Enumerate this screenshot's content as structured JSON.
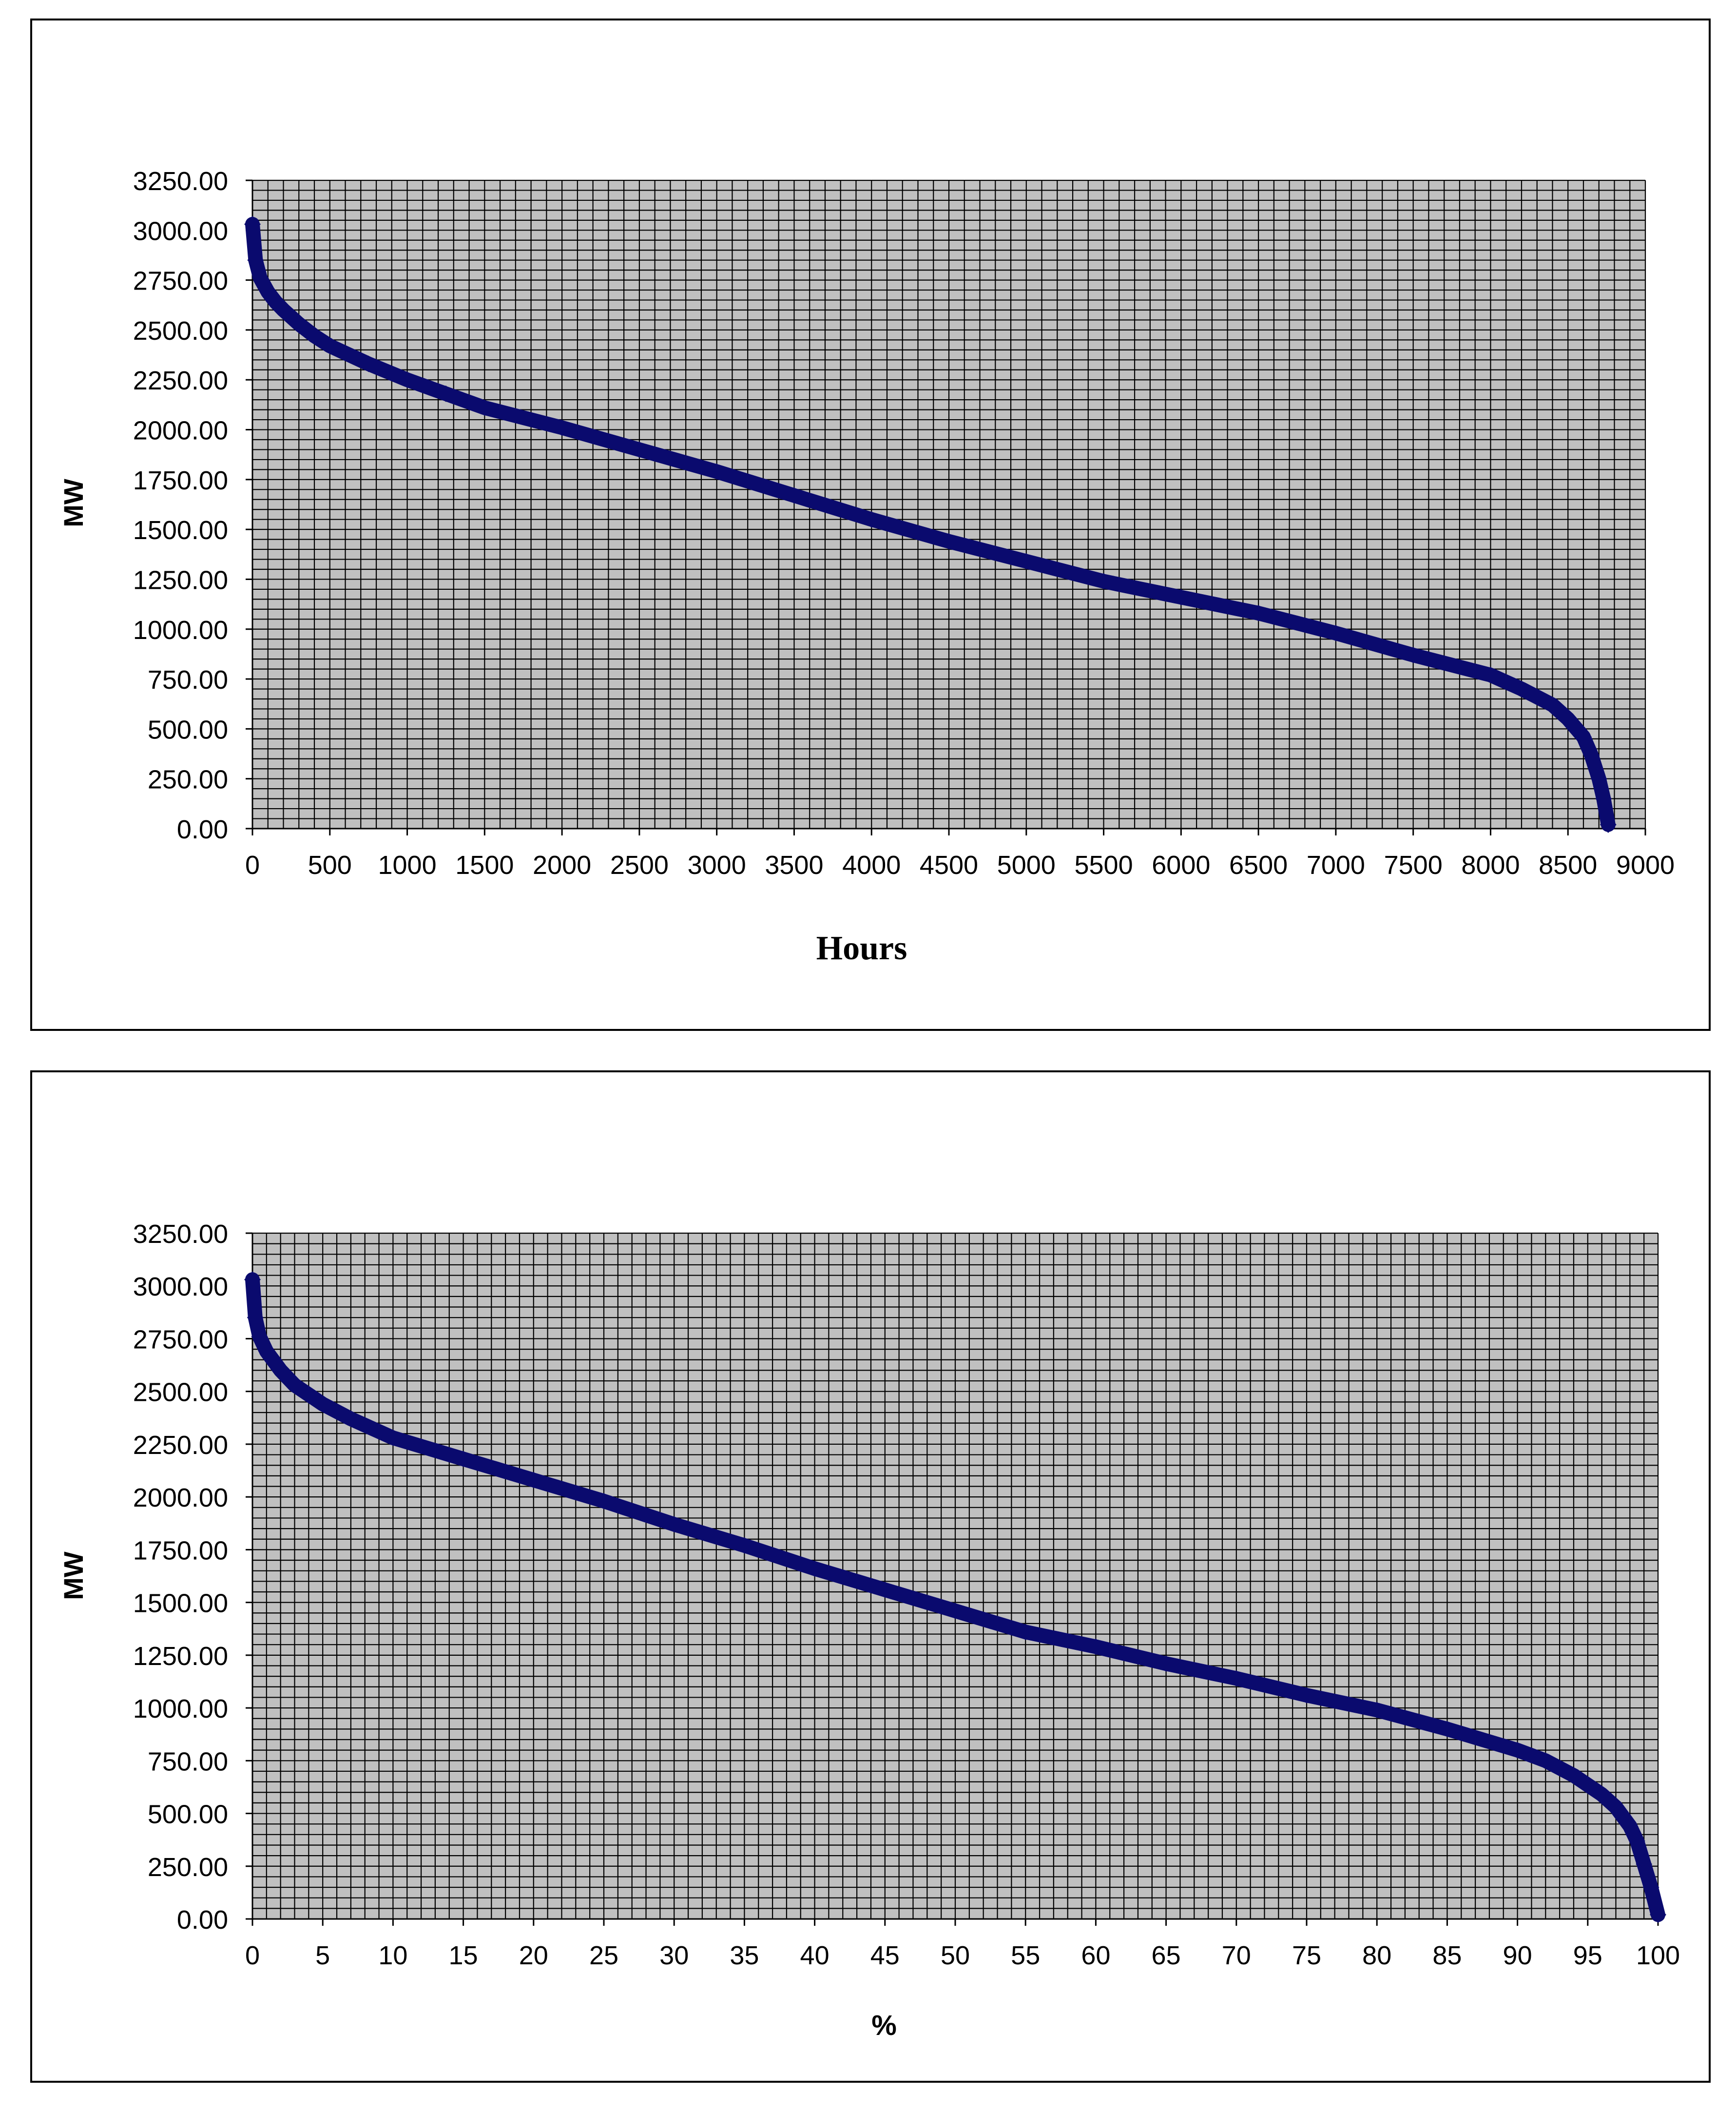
{
  "chart_data": [
    {
      "type": "scatter",
      "title": "",
      "xlabel": "Hours",
      "ylabel": "MW",
      "xlim": [
        0,
        9000
      ],
      "ylim": [
        0,
        3250
      ],
      "x_ticks": [
        0,
        500,
        1000,
        1500,
        2000,
        2500,
        3000,
        3500,
        4000,
        4500,
        5000,
        5500,
        6000,
        6500,
        7000,
        7500,
        8000,
        8500,
        9000
      ],
      "x_tick_labels": [
        "0",
        "500",
        "1000",
        "1500",
        "2000",
        "2500",
        "3000",
        "3500",
        "4000",
        "4500",
        "5000",
        "5500",
        "6000",
        "6500",
        "7000",
        "7500",
        "8000",
        "8500",
        "9000"
      ],
      "y_ticks": [
        0,
        250,
        500,
        750,
        1000,
        1250,
        1500,
        1750,
        2000,
        2250,
        2500,
        2750,
        3000,
        3250
      ],
      "y_tick_labels": [
        "0.00",
        "250.00",
        "500.00",
        "750.00",
        "1000.00",
        "1250.00",
        "1500.00",
        "1750.00",
        "2000.00",
        "2250.00",
        "2500.00",
        "2750.00",
        "3000.00",
        "3250.00"
      ],
      "x_grid": "every 100 units",
      "y_grid": "every 50 units",
      "legend": "none",
      "series": [
        {
          "color": "#0a0a6e",
          "x": [
            0,
            20,
            50,
            100,
            150,
            200,
            300,
            400,
            500,
            750,
            1000,
            1250,
            1500,
            2000,
            2500,
            3000,
            3500,
            4000,
            4500,
            5000,
            5500,
            6000,
            6500,
            7000,
            7500,
            8000,
            8200,
            8400,
            8500,
            8600,
            8650,
            8700,
            8730,
            8760
          ],
          "y": [
            3030,
            2850,
            2760,
            2690,
            2640,
            2600,
            2530,
            2470,
            2420,
            2330,
            2250,
            2180,
            2110,
            2010,
            1900,
            1790,
            1670,
            1550,
            1440,
            1340,
            1240,
            1160,
            1080,
            980,
            870,
            770,
            700,
            620,
            550,
            460,
            370,
            250,
            150,
            20
          ]
        }
      ]
    },
    {
      "type": "scatter",
      "title": "",
      "xlabel": "%",
      "ylabel": "MW",
      "xlim": [
        0,
        100
      ],
      "ylim": [
        0,
        3250
      ],
      "x_ticks": [
        0,
        5,
        10,
        15,
        20,
        25,
        30,
        35,
        40,
        45,
        50,
        55,
        60,
        65,
        70,
        75,
        80,
        85,
        90,
        95,
        100
      ],
      "x_tick_labels": [
        "0",
        "5",
        "10",
        "15",
        "20",
        "25",
        "30",
        "35",
        "40",
        "45",
        "50",
        "55",
        "60",
        "65",
        "70",
        "75",
        "80",
        "85",
        "90",
        "95",
        "100"
      ],
      "y_ticks": [
        0,
        250,
        500,
        750,
        1000,
        1250,
        1500,
        1750,
        2000,
        2250,
        2500,
        2750,
        3000,
        3250
      ],
      "y_tick_labels": [
        "0.00",
        "250.00",
        "500.00",
        "750.00",
        "1000.00",
        "1250.00",
        "1500.00",
        "1750.00",
        "2000.00",
        "2250.00",
        "2500.00",
        "2750.00",
        "3000.00",
        "3250.00"
      ],
      "x_grid": "every 1 unit",
      "y_grid": "every 50 units",
      "legend": "none",
      "series": [
        {
          "color": "#0a0a6e",
          "x": [
            0,
            0.2,
            0.5,
            1,
            2,
            3,
            5,
            7,
            10,
            15,
            20,
            25,
            30,
            35,
            40,
            45,
            50,
            55,
            60,
            65,
            70,
            75,
            80,
            85,
            90,
            92,
            94,
            96,
            97,
            98,
            98.5,
            99,
            99.5,
            100
          ],
          "y": [
            3030,
            2850,
            2760,
            2690,
            2600,
            2530,
            2440,
            2370,
            2280,
            2180,
            2080,
            1980,
            1870,
            1770,
            1660,
            1560,
            1460,
            1360,
            1290,
            1210,
            1140,
            1060,
            990,
            900,
            800,
            750,
            680,
            590,
            530,
            440,
            370,
            260,
            150,
            20
          ]
        }
      ]
    }
  ]
}
